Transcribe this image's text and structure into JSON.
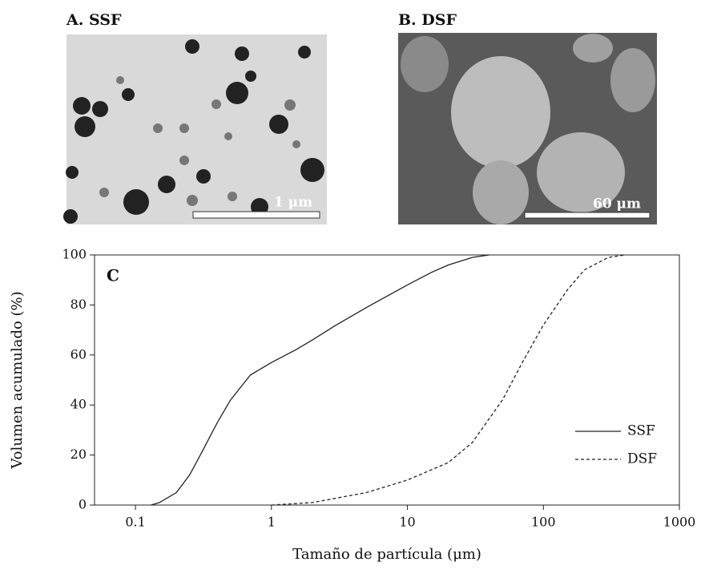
{
  "panels": {
    "a": {
      "label": "A. SSF",
      "scale_bar": "1 μm"
    },
    "b": {
      "label": "B. DSF",
      "scale_bar": "60 μm"
    }
  },
  "chart_data": {
    "type": "line",
    "annotation": "C",
    "x_label": "Tamaño de partícula (μm)",
    "y_label": "Volumen acumulado (%)",
    "xscale": "log",
    "xlim": [
      0.05,
      1000
    ],
    "xticks": [
      0.1,
      1,
      10,
      100,
      1000
    ],
    "ylim": [
      0,
      100
    ],
    "yticks": [
      0,
      20,
      40,
      60,
      80,
      100
    ],
    "legend": "lower right",
    "series": [
      {
        "name": "SSF",
        "color": "#222222",
        "dash": "solid",
        "x": [
          0.13,
          0.15,
          0.2,
          0.25,
          0.3,
          0.4,
          0.5,
          0.7,
          1,
          1.5,
          2,
          3,
          5,
          10,
          15,
          20,
          30,
          40
        ],
        "values": [
          0,
          1,
          5,
          12,
          20,
          33,
          42,
          52,
          57,
          62,
          66,
          72,
          79,
          88,
          93,
          96,
          99,
          100
        ]
      },
      {
        "name": "DSF",
        "color": "#222222",
        "dash": "dashed",
        "x": [
          1,
          2,
          5,
          10,
          20,
          30,
          50,
          70,
          100,
          150,
          200,
          300,
          400
        ],
        "values": [
          0,
          1,
          5,
          10,
          17,
          25,
          42,
          57,
          72,
          86,
          94,
          99,
          100
        ]
      }
    ]
  }
}
